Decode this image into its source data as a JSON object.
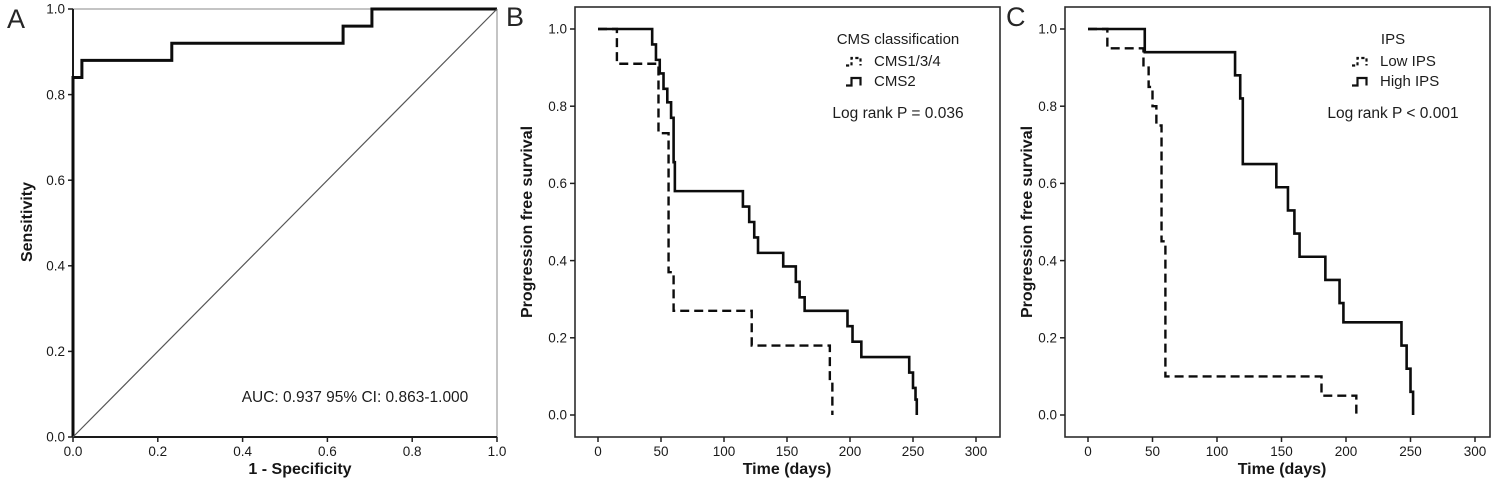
{
  "figure": {
    "background": "#ffffff",
    "line_color": "#0c0c0c",
    "axis_color": "#2d2d2d"
  },
  "panels": {
    "A": {
      "letter": "A",
      "x_label": "1 - Specificity",
      "y_label": "Sensitivity",
      "x_ticks": [
        "0.0",
        "0.2",
        "0.4",
        "0.6",
        "0.8",
        "1.0"
      ],
      "y_ticks": [
        "0.0",
        "0.2",
        "0.4",
        "0.6",
        "0.8",
        "1.0"
      ],
      "annotation": "AUC: 0.937 95% CI: 0.863-1.000"
    },
    "B": {
      "letter": "B",
      "x_label": "Time (days)",
      "y_label": "Progression free survival",
      "x_ticks": [
        "0",
        "50",
        "100",
        "150",
        "200",
        "250",
        "300"
      ],
      "y_ticks": [
        "0.0",
        "0.2",
        "0.4",
        "0.6",
        "0.8",
        "1.0"
      ],
      "legend_title": "CMS classification",
      "legend": [
        {
          "label": "CMS1/3/4",
          "style": "dashed"
        },
        {
          "label": "CMS2",
          "style": "solid"
        }
      ],
      "annotation": "Log rank P = 0.036"
    },
    "C": {
      "letter": "C",
      "x_label": "Time (days)",
      "y_label": "Progression free survival",
      "x_ticks": [
        "0",
        "50",
        "100",
        "150",
        "200",
        "250",
        "300"
      ],
      "y_ticks": [
        "0.0",
        "0.2",
        "0.4",
        "0.6",
        "0.8",
        "1.0"
      ],
      "legend_title": "IPS",
      "legend": [
        {
          "label": "Low IPS",
          "style": "dashed"
        },
        {
          "label": "High IPS",
          "style": "solid"
        }
      ],
      "annotation": "Log rank P < 0.001"
    }
  },
  "chart_data": [
    {
      "type": "line",
      "panel": "A",
      "title": "ROC curve",
      "xlabel": "1 - Specificity",
      "ylabel": "Sensitivity",
      "xlim": [
        0,
        1
      ],
      "ylim": [
        0,
        1
      ],
      "annotation": "AUC: 0.937 95% CI: 0.863-1.000",
      "auc": 0.937,
      "ci_95": "0.863-1.000",
      "series": [
        {
          "name": "ROC curve",
          "step": false,
          "dash": false,
          "width": 3,
          "points": [
            [
              0,
              0
            ],
            [
              0,
              0.84
            ],
            [
              0.021,
              0.84
            ],
            [
              0.021,
              0.88
            ],
            [
              0.233,
              0.88
            ],
            [
              0.233,
              0.92
            ],
            [
              0.637,
              0.92
            ],
            [
              0.637,
              0.96
            ],
            [
              0.705,
              0.96
            ],
            [
              0.705,
              1.0
            ],
            [
              1.0,
              1.0
            ]
          ]
        },
        {
          "name": "reference diagonal",
          "step": false,
          "dash": false,
          "width": 1.2,
          "color": "#555555",
          "points": [
            [
              0,
              0
            ],
            [
              1,
              1
            ]
          ]
        }
      ]
    },
    {
      "type": "line",
      "panel": "B",
      "title": "Progression free survival by CMS classification",
      "xlabel": "Time (days)",
      "ylabel": "Progression free survival",
      "xlim": [
        0,
        300
      ],
      "ylim": [
        0,
        1
      ],
      "legend_title": "CMS classification",
      "annotation": "Log rank P = 0.036",
      "log_rank_p": "= 0.036",
      "series": [
        {
          "name": "CMS1/3/4",
          "step": true,
          "dash": true,
          "width": 2.4,
          "points": [
            [
              0,
              1.0
            ],
            [
              15,
              0.91
            ],
            [
              48,
              0.73
            ],
            [
              56,
              0.37
            ],
            [
              60,
              0.27
            ],
            [
              122,
              0.18
            ],
            [
              184,
              0.09
            ],
            [
              186,
              0.0
            ]
          ]
        },
        {
          "name": "CMS2",
          "step": true,
          "dash": false,
          "width": 2.6,
          "points": [
            [
              0,
              1.0
            ],
            [
              43,
              0.96
            ],
            [
              46,
              0.92
            ],
            [
              49,
              0.885
            ],
            [
              52,
              0.845
            ],
            [
              55,
              0.81
            ],
            [
              58,
              0.77
            ],
            [
              60,
              0.655
            ],
            [
              61,
              0.58
            ],
            [
              115,
              0.54
            ],
            [
              120,
              0.5
            ],
            [
              124,
              0.46
            ],
            [
              127,
              0.42
            ],
            [
              147,
              0.385
            ],
            [
              157,
              0.345
            ],
            [
              160,
              0.305
            ],
            [
              164,
              0.27
            ],
            [
              198,
              0.23
            ],
            [
              202,
              0.19
            ],
            [
              209,
              0.15
            ],
            [
              247,
              0.11
            ],
            [
              250,
              0.07
            ],
            [
              252,
              0.04
            ],
            [
              253,
              0.0
            ]
          ]
        }
      ]
    },
    {
      "type": "line",
      "panel": "C",
      "title": "Progression free survival by IPS",
      "xlabel": "Time (days)",
      "ylabel": "Progression free survival",
      "xlim": [
        0,
        300
      ],
      "ylim": [
        0,
        1
      ],
      "legend_title": "IPS",
      "annotation": "Log rank P < 0.001",
      "log_rank_p": "< 0.001",
      "series": [
        {
          "name": "Low IPS",
          "step": true,
          "dash": true,
          "width": 2.4,
          "points": [
            [
              0,
              1.0
            ],
            [
              15,
              0.95
            ],
            [
              43,
              0.9
            ],
            [
              47,
              0.85
            ],
            [
              50,
              0.8
            ],
            [
              53,
              0.75
            ],
            [
              57,
              0.45
            ],
            [
              60,
              0.1
            ],
            [
              181,
              0.05
            ],
            [
              208,
              0.0
            ]
          ]
        },
        {
          "name": "High IPS",
          "step": true,
          "dash": false,
          "width": 2.6,
          "points": [
            [
              0,
              1.0
            ],
            [
              44,
              0.94
            ],
            [
              114,
              0.88
            ],
            [
              118,
              0.82
            ],
            [
              120,
              0.65
            ],
            [
              146,
              0.59
            ],
            [
              155,
              0.53
            ],
            [
              160,
              0.47
            ],
            [
              164,
              0.41
            ],
            [
              184,
              0.35
            ],
            [
              195,
              0.29
            ],
            [
              198,
              0.24
            ],
            [
              243,
              0.18
            ],
            [
              247,
              0.12
            ],
            [
              250,
              0.06
            ],
            [
              252,
              0.0
            ]
          ]
        }
      ]
    }
  ]
}
